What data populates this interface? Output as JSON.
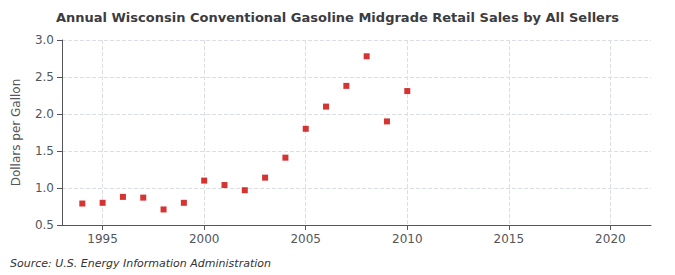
{
  "chart_data": {
    "type": "scatter",
    "title": "Annual Wisconsin Conventional Gasoline Midgrade Retail Sales by All Sellers",
    "ylabel": "Dollars per Gallon",
    "annotations": [
      "Source: U.S. Energy Information Administration"
    ],
    "x": [
      1994,
      1995,
      1996,
      1997,
      1998,
      1999,
      2000,
      2001,
      2002,
      2003,
      2004,
      2005,
      2006,
      2007,
      2008,
      2009,
      2010
    ],
    "values": [
      0.79,
      0.8,
      0.88,
      0.87,
      0.71,
      0.8,
      1.1,
      1.04,
      0.97,
      1.14,
      1.41,
      1.8,
      2.1,
      2.38,
      2.78,
      1.9,
      2.31
    ],
    "color": "#cc0000",
    "marker": "square",
    "xlim": [
      1993,
      2022
    ],
    "xticks": [
      1995,
      2000,
      2005,
      2010,
      2015,
      2020
    ],
    "ylim": [
      0.5,
      3.0
    ],
    "yticks": [
      0.5,
      {
        "value": 1.0,
        "label": "1.0"
      },
      1.5,
      {
        "value": 2.0,
        "label": "2.0"
      },
      2.5,
      {
        "value": 3.0,
        "label": "3.0"
      }
    ],
    "grid": true
  }
}
